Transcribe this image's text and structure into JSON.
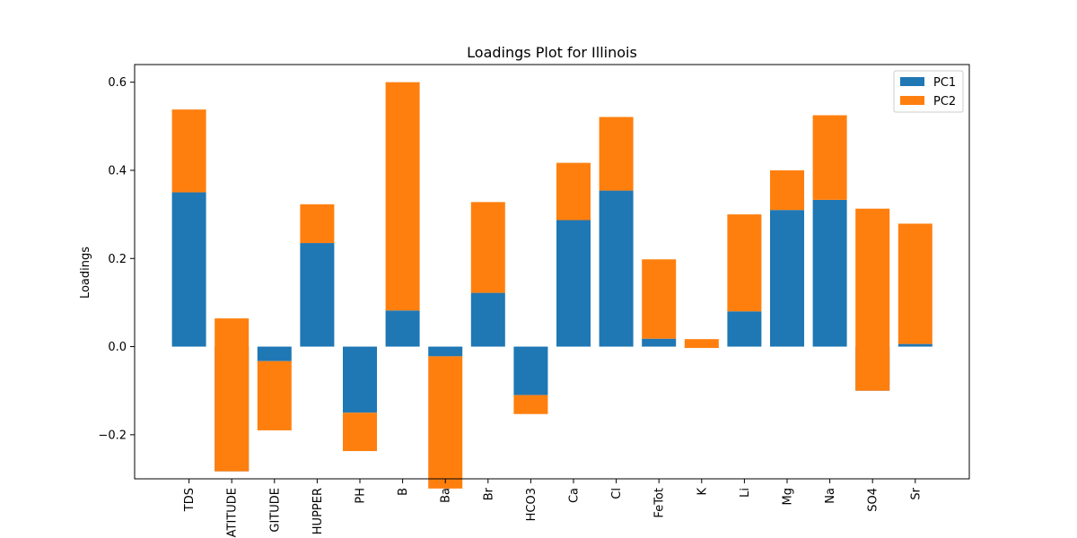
{
  "chart_data": {
    "type": "bar",
    "title": "Loadings Plot for Illinois",
    "xlabel": "",
    "ylabel": "Loadings",
    "ylim": [
      -0.3,
      0.64
    ],
    "yticks": [
      -0.2,
      0.0,
      0.2,
      0.4,
      0.6
    ],
    "ytick_labels": [
      "−0.2",
      "0.0",
      "0.2",
      "0.4",
      "0.6"
    ],
    "grid": false,
    "legend_position": "top-right",
    "categories": [
      "TDS",
      "LATITUDE",
      "LONGITUDE",
      "DEPTHUPPER",
      "PH",
      "B",
      "Ba",
      "Br",
      "HCO3",
      "Ca",
      "Cl",
      "FeTot",
      "K",
      "Li",
      "Mg",
      "Na",
      "SO4",
      "Sr"
    ],
    "category_labels_shown": [
      "TDS",
      "ATITUDE",
      "GITUDE",
      "HUPPER",
      "PH",
      "B",
      "Ba",
      "Br",
      "HCO3",
      "Ca",
      "Cl",
      "FeTot",
      "K",
      "Li",
      "Mg",
      "Na",
      "SO4",
      "Sr"
    ],
    "series": [
      {
        "name": "PC1",
        "color": "#1f77b4",
        "values": [
          0.35,
          -0.283,
          -0.033,
          0.235,
          -0.15,
          0.082,
          -0.022,
          0.122,
          -0.11,
          0.287,
          0.354,
          0.018,
          -0.003,
          0.08,
          0.31,
          0.333,
          -0.1,
          0.006
        ]
      },
      {
        "name": "PC2",
        "color": "#ff7f0e",
        "values": [
          0.188,
          0.347,
          -0.157,
          0.088,
          -0.087,
          0.518,
          -0.3,
          0.206,
          -0.043,
          0.13,
          0.167,
          0.18,
          0.02,
          0.22,
          0.09,
          0.192,
          0.413,
          0.273
        ]
      }
    ]
  }
}
